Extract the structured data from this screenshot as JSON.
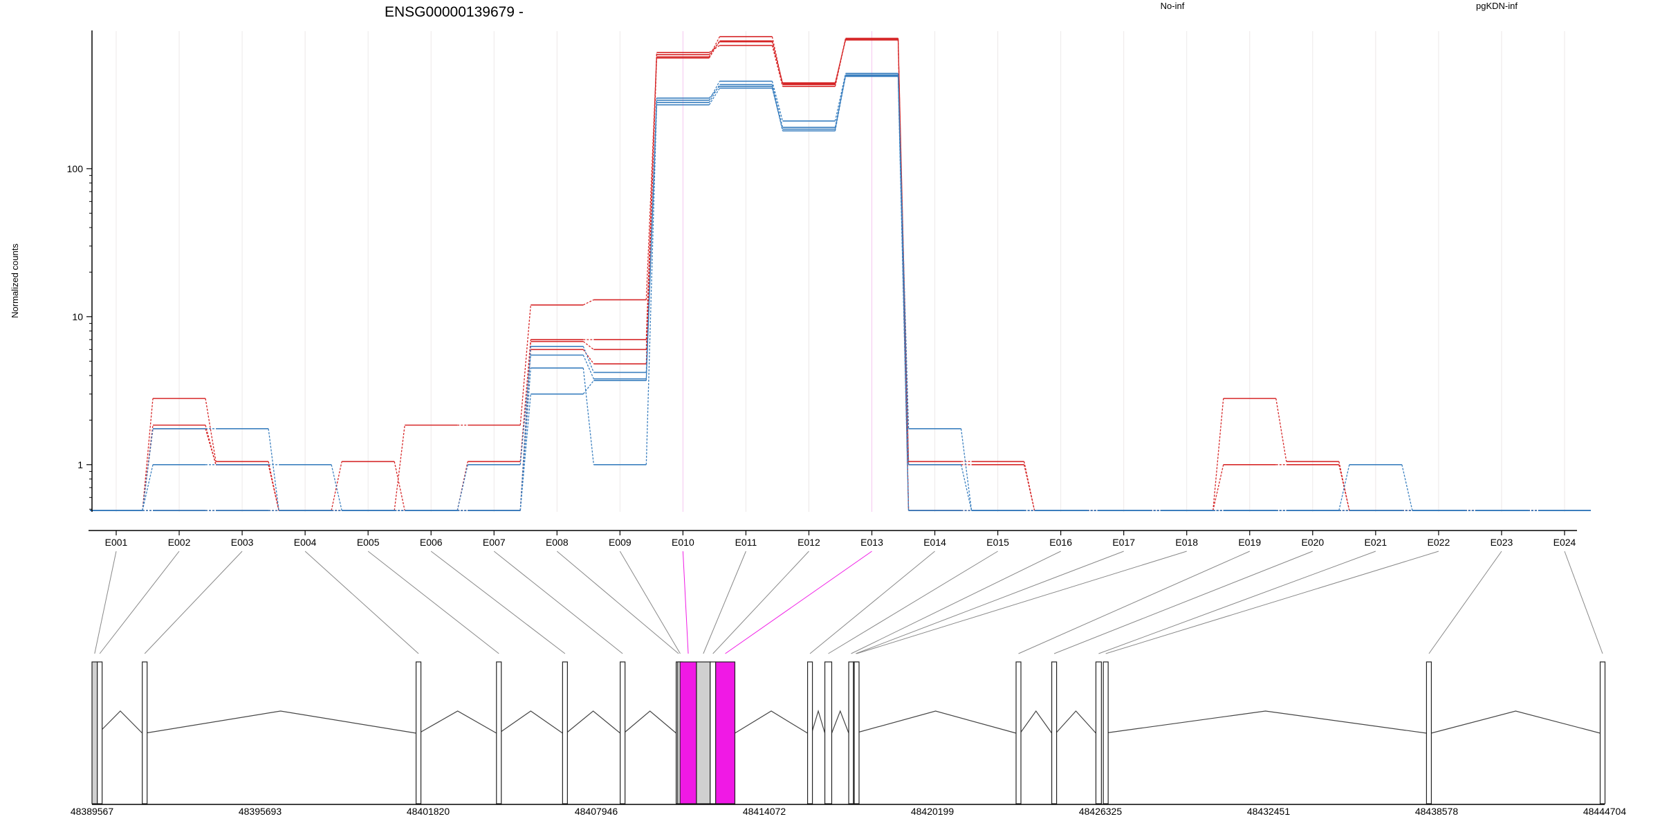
{
  "chart_data": {
    "type": "line",
    "title": "ENSG00000139679 -",
    "ylabel": "Normalized counts",
    "y_scale": "log",
    "ylim": [
      0.48,
      850
    ],
    "yticks": [
      1,
      10,
      100
    ],
    "ytick_labels": [
      "1",
      "10",
      "100"
    ],
    "grid": "vertical",
    "legend_position": "top-right",
    "categories": [
      "E001",
      "E002",
      "E003",
      "E004",
      "E005",
      "E006",
      "E007",
      "E008",
      "E009",
      "E010",
      "E011",
      "E012",
      "E013",
      "E014",
      "E015",
      "E016",
      "E017",
      "E018",
      "E019",
      "E020",
      "E021",
      "E022",
      "E023",
      "E024"
    ],
    "highlighted_exons": [
      "E010",
      "E013"
    ],
    "colors": {
      "No-inf": "#d62728",
      "pgKDN-inf": "#3a7fbf",
      "highlight": "#f019e5",
      "exon_fill": "#d0d0d0",
      "grid": "#ece8e8"
    },
    "series": [
      {
        "name": "No-inf",
        "group": "No-inf",
        "values": [
          0.49,
          2.8,
          1.05,
          0.49,
          1.05,
          0.49,
          1.05,
          7.0,
          7.0,
          590,
          720,
          380,
          740,
          1.05,
          1.05,
          0.49,
          0.49,
          0.49,
          2.8,
          1.05,
          0.49,
          0.49,
          0.49,
          0.49
        ]
      },
      {
        "name": "No-inf",
        "group": "No-inf",
        "values": [
          0.49,
          1.85,
          1.0,
          0.49,
          0.49,
          1.85,
          1.85,
          12.0,
          13.0,
          570,
          780,
          370,
          760,
          1.0,
          1.0,
          0.49,
          0.49,
          0.49,
          1.0,
          1.0,
          0.49,
          0.49,
          0.49,
          0.49
        ]
      },
      {
        "name": "No-inf",
        "group": "No-inf",
        "values": [
          0.49,
          1.75,
          1.0,
          0.49,
          0.49,
          0.49,
          0.49,
          6.8,
          6.0,
          610,
          680,
          360,
          750,
          0.49,
          0.49,
          0.49,
          0.49,
          0.49,
          0.49,
          0.49,
          0.49,
          0.49,
          0.49,
          0.49
        ]
      },
      {
        "name": "No-inf",
        "group": "No-inf",
        "values": [
          0.49,
          0.49,
          0.49,
          0.49,
          0.49,
          0.49,
          0.49,
          6.0,
          4.8,
          560,
          730,
          375,
          745,
          0.49,
          0.49,
          0.49,
          0.49,
          0.49,
          0.49,
          0.49,
          0.49,
          0.49,
          0.49,
          0.49
        ]
      },
      {
        "name": "pgKDN-inf",
        "group": "pgKDN-inf",
        "values": [
          0.49,
          1.75,
          1.75,
          0.49,
          0.49,
          0.49,
          1.0,
          5.5,
          3.8,
          290,
          390,
          210,
          440,
          1.75,
          0.49,
          0.49,
          0.49,
          0.49,
          0.49,
          0.49,
          1.0,
          0.49,
          0.49,
          0.49
        ]
      },
      {
        "name": "pgKDN-inf",
        "group": "pgKDN-inf",
        "values": [
          0.49,
          1.0,
          1.0,
          1.0,
          0.49,
          0.49,
          0.49,
          4.5,
          1.0,
          270,
          350,
          185,
          430,
          1.0,
          0.49,
          0.49,
          0.49,
          0.49,
          0.49,
          0.49,
          0.49,
          0.49,
          0.49,
          0.49
        ]
      },
      {
        "name": "pgKDN-inf",
        "group": "pgKDN-inf",
        "values": [
          0.49,
          0.49,
          0.49,
          0.49,
          0.49,
          0.49,
          0.49,
          3.0,
          3.7,
          280,
          370,
          190,
          420,
          0.49,
          0.49,
          0.49,
          0.49,
          0.49,
          0.49,
          0.49,
          0.49,
          0.49,
          0.49,
          0.49
        ]
      },
      {
        "name": "pgKDN-inf",
        "group": "pgKDN-inf",
        "values": [
          0.49,
          0.49,
          0.49,
          0.49,
          0.49,
          0.49,
          0.49,
          6.3,
          4.2,
          300,
          360,
          180,
          425,
          0.49,
          0.49,
          0.49,
          0.49,
          0.49,
          0.49,
          0.49,
          0.49,
          0.49,
          0.49,
          0.49
        ]
      }
    ],
    "legend": [
      {
        "name": "No-inf",
        "color": "#d62728"
      },
      {
        "name": "pgKDN-inf",
        "color": "#3a7fbf"
      }
    ],
    "gene_model": {
      "genomic_range": [
        48389567,
        48444704
      ],
      "tick_labels": [
        "48389567",
        "48395693",
        "48401820",
        "48407946",
        "48414072",
        "48420199",
        "48426325",
        "48432451",
        "48438578",
        "48444704"
      ],
      "exons": [
        {
          "id": "E001",
          "start": 48389567,
          "end": 48389760
        },
        {
          "id": "E002",
          "start": 48389760,
          "end": 48389800
        },
        {
          "id": "E003",
          "start": 48391400,
          "end": 48391500
        },
        {
          "id": "E004",
          "start": 48401380,
          "end": 48401480
        },
        {
          "id": "E005",
          "start": 48404310,
          "end": 48404400
        },
        {
          "id": "E006",
          "start": 48406720,
          "end": 48406850
        },
        {
          "id": "E007",
          "start": 48408820,
          "end": 48408950
        },
        {
          "id": "E008",
          "start": 48410860,
          "end": 48410920
        },
        {
          "id": "E009",
          "start": 48410920,
          "end": 48411000
        },
        {
          "id": "E010",
          "start": 48411000,
          "end": 48411600
        },
        {
          "id": "E011",
          "start": 48411600,
          "end": 48412100
        },
        {
          "id": "E012",
          "start": 48412100,
          "end": 48412300
        },
        {
          "id": "E013",
          "start": 48412300,
          "end": 48413000
        },
        {
          "id": "E014",
          "start": 48415650,
          "end": 48415800
        },
        {
          "id": "E015",
          "start": 48416280,
          "end": 48416530
        },
        {
          "id": "E016",
          "start": 48417150,
          "end": 48417320
        },
        {
          "id": "E017",
          "start": 48417320,
          "end": 48417350
        },
        {
          "id": "E018",
          "start": 48417350,
          "end": 48417380
        },
        {
          "id": "E019",
          "start": 48423250,
          "end": 48423400
        },
        {
          "id": "E020",
          "start": 48424550,
          "end": 48424700
        },
        {
          "id": "E021",
          "start": 48426160,
          "end": 48426360
        },
        {
          "id": "E022",
          "start": 48426430,
          "end": 48426470
        },
        {
          "id": "E023",
          "start": 48438210,
          "end": 48438380
        },
        {
          "id": "E024",
          "start": 48444540,
          "end": 48444704
        }
      ],
      "shaded_exons": [
        "E001",
        "E008",
        "E011",
        "E017"
      ],
      "introns": [
        [
          48389800,
          48391400
        ],
        [
          48391500,
          48401380
        ],
        [
          48401480,
          48404310
        ],
        [
          48404400,
          48406720
        ],
        [
          48406850,
          48408820
        ],
        [
          48408950,
          48410860
        ],
        [
          48413000,
          48415650
        ],
        [
          48415800,
          48416280
        ],
        [
          48416530,
          48417150
        ],
        [
          48417380,
          48423250
        ],
        [
          48423400,
          48424550
        ],
        [
          48424700,
          48426160
        ],
        [
          48426470,
          48438210
        ],
        [
          48438380,
          48444540
        ]
      ]
    }
  }
}
